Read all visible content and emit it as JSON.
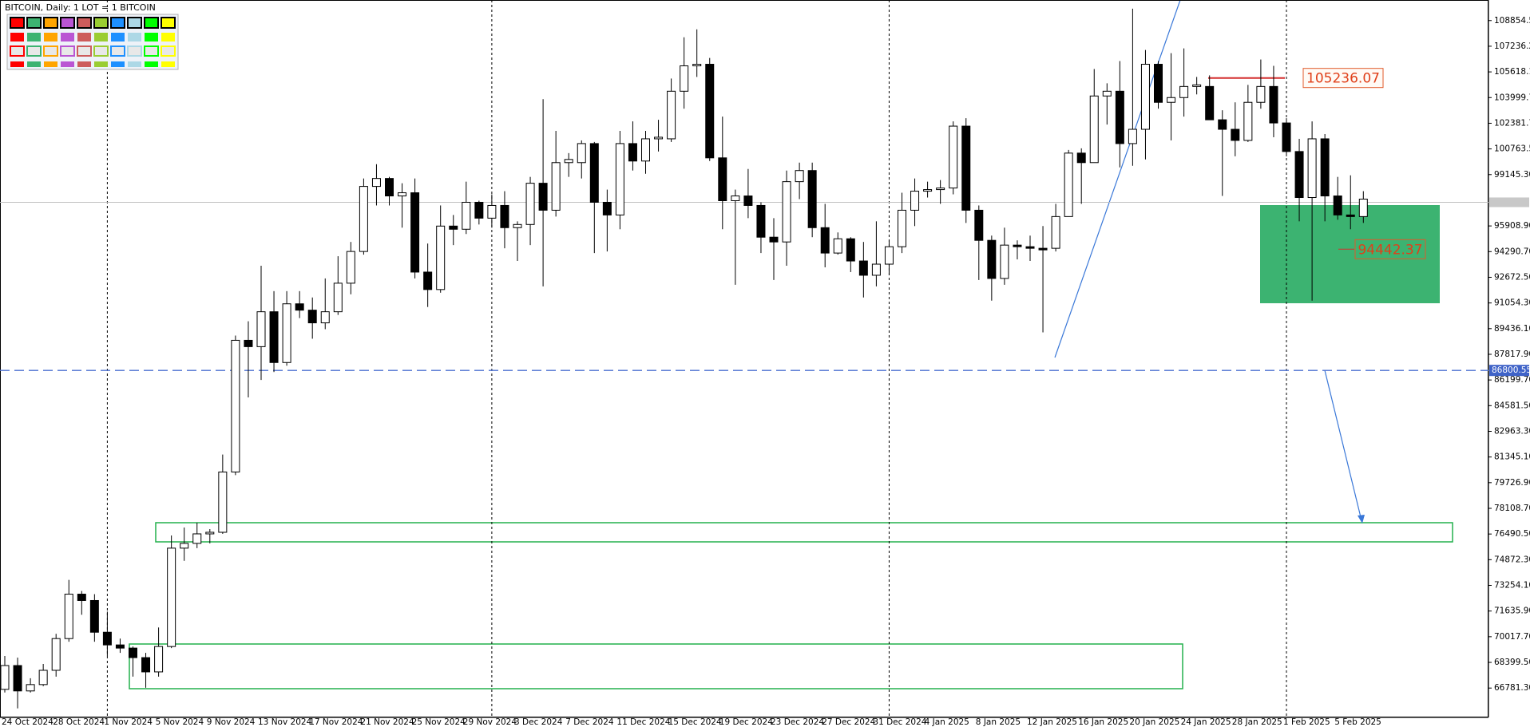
{
  "chart_data": {
    "type": "candlestick",
    "title": "BITCOIN, Daily:  1 LOT = 1 BITCOIN",
    "categories": [
      "24 Oct 2024",
      null,
      null,
      null,
      "28 Oct 2024",
      null,
      null,
      null,
      "1 Nov 2024",
      null,
      null,
      null,
      "5 Nov 2024",
      null,
      null,
      null,
      "9 Nov 2024",
      null,
      null,
      null,
      "13 Nov 2024",
      null,
      null,
      null,
      "17 Nov 2024",
      null,
      null,
      null,
      "21 Nov 2024",
      null,
      null,
      null,
      "25 Nov 2024",
      null,
      null,
      null,
      "29 Nov 2024",
      null,
      null,
      null,
      "3 Dec 2024",
      null,
      null,
      null,
      "7 Dec 2024",
      null,
      null,
      null,
      "11 Dec 2024",
      null,
      null,
      null,
      "15 Dec 2024",
      null,
      null,
      null,
      "19 Dec 2024",
      null,
      null,
      null,
      "23 Dec 2024",
      null,
      null,
      null,
      "27 Dec 2024",
      null,
      null,
      null,
      "31 Dec 2024",
      null,
      null,
      null,
      "4 Jan 2025",
      null,
      null,
      null,
      "8 Jan 2025",
      null,
      null,
      null,
      "12 Jan 2025",
      null,
      null,
      null,
      "16 Jan 2025",
      null,
      null,
      null,
      "20 Jan 2025",
      null,
      null,
      null,
      "24 Jan 2025",
      null,
      null,
      null,
      "28 Jan 2025",
      null,
      null,
      null,
      "1 Feb 2025",
      null,
      null,
      null,
      "5 Feb 2025",
      null,
      null
    ],
    "open": [
      66700,
      68200,
      66600,
      67000,
      67900,
      69900,
      72700,
      72300,
      70300,
      69500,
      69300,
      68700,
      67800,
      69400,
      75600,
      75900,
      76500,
      76600,
      80400,
      88700,
      88300,
      90500,
      87300,
      91000,
      90600,
      89800,
      90500,
      92300,
      94300,
      98400,
      98900,
      97800,
      98000,
      93000,
      91900,
      95900,
      95700,
      97400,
      96400,
      97200,
      95800,
      96000,
      98600,
      96900,
      99900,
      99900,
      101100,
      97400,
      96600,
      101100,
      100000,
      101400,
      101400,
      104400,
      106000,
      106100,
      100200,
      97500,
      97800,
      97200,
      95200,
      94900,
      98700,
      99400,
      95800,
      94200,
      95100,
      93700,
      92800,
      93500,
      94600,
      96900,
      98100,
      98200,
      98300,
      102200,
      96900,
      95000,
      92600,
      94700,
      94600,
      94500,
      94500,
      96500,
      100500,
      99900,
      104100,
      104400,
      101100,
      102000,
      106100,
      103700,
      104000,
      104700,
      104700,
      102600,
      102000,
      101300,
      103700,
      104700,
      102400,
      100600,
      97700,
      101400,
      97800,
      96600,
      96500
    ],
    "high": [
      68800,
      68700,
      67400,
      68300,
      70200,
      73600,
      72900,
      72700,
      71600,
      69900,
      69400,
      69000,
      70600,
      76400,
      76900,
      77200,
      76800,
      81500,
      89000,
      89900,
      93400,
      91800,
      91800,
      91800,
      91400,
      92600,
      94000,
      94900,
      98900,
      99800,
      99000,
      98600,
      98900,
      94800,
      97200,
      96600,
      98700,
      97500,
      97900,
      98100,
      96200,
      99000,
      103900,
      101900,
      100500,
      101300,
      101200,
      98200,
      101900,
      102500,
      101900,
      102600,
      105200,
      107800,
      108300,
      106500,
      102800,
      98200,
      99500,
      97400,
      96400,
      99400,
      99900,
      99900,
      97300,
      95500,
      95200,
      94900,
      96200,
      95000,
      98000,
      98900,
      98700,
      98800,
      102500,
      102700,
      97200,
      95300,
      95800,
      95000,
      95300,
      95900,
      97300,
      100700,
      100800,
      105800,
      104900,
      106300,
      109600,
      107000,
      106300,
      106800,
      107100,
      105300,
      105400,
      103200,
      103700,
      104800,
      106400,
      106000,
      102700,
      101400,
      102500,
      101700,
      99000,
      99100,
      98100
    ],
    "low": [
      66500,
      65500,
      66500,
      66900,
      67500,
      69700,
      71400,
      69700,
      68800,
      69000,
      67500,
      66800,
      67500,
      69300,
      74800,
      75600,
      75900,
      76500,
      80200,
      85100,
      86200,
      86700,
      87100,
      90100,
      88800,
      89400,
      90300,
      91600,
      94100,
      97200,
      97200,
      95800,
      92600,
      90800,
      91700,
      94700,
      95400,
      96000,
      95800,
      94500,
      93700,
      94700,
      92100,
      96500,
      99000,
      98900,
      94200,
      94300,
      95700,
      99400,
      99200,
      100600,
      101200,
      103300,
      105300,
      100000,
      95700,
      92200,
      96400,
      94200,
      92500,
      93400,
      97600,
      95200,
      93300,
      94100,
      93000,
      91400,
      92100,
      92800,
      94200,
      95900,
      97700,
      97300,
      97900,
      96100,
      92500,
      91200,
      92200,
      93800,
      93700,
      89200,
      94300,
      96500,
      97300,
      99900,
      102300,
      99600,
      99700,
      100100,
      103300,
      101300,
      102800,
      104200,
      102600,
      97800,
      100300,
      101200,
      103300,
      101500,
      100300,
      96200,
      91200,
      96200,
      96300,
      95700,
      96100
    ],
    "close": [
      68200,
      66600,
      67000,
      67900,
      69900,
      72700,
      72300,
      70300,
      69500,
      69300,
      68700,
      67800,
      69400,
      75600,
      75900,
      76500,
      76600,
      80400,
      88700,
      88300,
      90500,
      87300,
      91000,
      90600,
      89800,
      90500,
      92300,
      94300,
      98400,
      98900,
      97800,
      98000,
      93000,
      91900,
      95900,
      95700,
      97400,
      96400,
      97200,
      95800,
      96000,
      98600,
      96900,
      99900,
      100100,
      101100,
      97400,
      96600,
      101100,
      100000,
      101400,
      101500,
      104400,
      106000,
      106100,
      100200,
      97500,
      97800,
      97200,
      95200,
      94900,
      98700,
      99400,
      95800,
      94200,
      95100,
      93700,
      92800,
      93500,
      94600,
      96900,
      98100,
      98200,
      98300,
      102200,
      96900,
      95000,
      92600,
      94700,
      94600,
      94500,
      94400,
      96500,
      100500,
      99900,
      104100,
      104400,
      101100,
      102000,
      106100,
      103700,
      104000,
      104700,
      104800,
      102600,
      102000,
      101300,
      103700,
      104700,
      102400,
      100600,
      97700,
      101400,
      97800,
      96600,
      96500,
      97600
    ],
    "ylim": [
      64930,
      110150
    ],
    "yticks": [
      {
        "value": 108854.5,
        "label": "108854.50"
      },
      {
        "value": 107236.2,
        "label": "107236.20"
      },
      {
        "value": 105618.1,
        "label": "105618.10"
      },
      {
        "value": 103999.7,
        "label": "103999.70"
      },
      {
        "value": 102381.7,
        "label": "102381.70"
      },
      {
        "value": 100763.5,
        "label": "100763.50"
      },
      {
        "value": 99145.3,
        "label": "99145.30"
      },
      {
        "value": 95908.9,
        "label": "95908.90"
      },
      {
        "value": 94290.7,
        "label": "94290.70"
      },
      {
        "value": 92672.5,
        "label": "92672.50"
      },
      {
        "value": 91054.3,
        "label": "91054.30"
      },
      {
        "value": 89436.1,
        "label": "89436.10"
      },
      {
        "value": 87817.9,
        "label": "87817.90"
      },
      {
        "value": 86199.7,
        "label": "86199.70"
      },
      {
        "value": 84581.5,
        "label": "84581.50"
      },
      {
        "value": 82963.3,
        "label": "82963.30"
      },
      {
        "value": 81345.1,
        "label": "81345.10"
      },
      {
        "value": 79726.9,
        "label": "79726.90"
      },
      {
        "value": 78108.7,
        "label": "78108.70"
      },
      {
        "value": 76490.5,
        "label": "76490.50"
      },
      {
        "value": 74872.3,
        "label": "74872.30"
      },
      {
        "value": 73254.1,
        "label": "73254.10"
      },
      {
        "value": 71635.9,
        "label": "71635.90"
      },
      {
        "value": 70017.7,
        "label": "70017.70"
      },
      {
        "value": 68399.5,
        "label": "68399.50"
      },
      {
        "value": 66781.3,
        "label": "66781.30"
      }
    ],
    "bid_line": 97400,
    "horizontal_line": 86800.55,
    "resistance_label": 105236.07,
    "support_label": 94442.37
  }
}
